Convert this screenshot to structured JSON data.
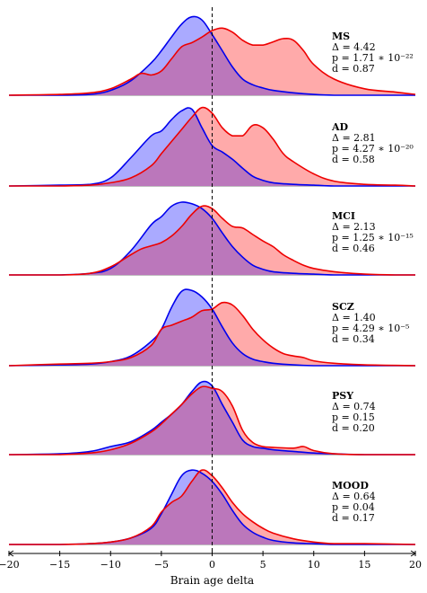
{
  "chart_data": {
    "type": "area",
    "xlabel": "Brain age delta",
    "xlim": [
      -20,
      20
    ],
    "xticks": [
      "−20",
      "−15",
      "−10",
      "−5",
      "0",
      "5",
      "10",
      "15",
      "20"
    ],
    "xtick_values": [
      -20,
      -15,
      -10,
      -5,
      0,
      5,
      10,
      15,
      20
    ],
    "reference_line_x": 0,
    "colors": {
      "control": "#0000ee",
      "control_fill": "#aaaaff",
      "patient": "#ee0000",
      "patient_fill": "#ffaaaa",
      "overlap": "#bb77bb"
    },
    "panels": [
      {
        "label": "MS",
        "stats": [
          "Δ = 4.42",
          "p = 1.71 ∗ 10⁻²²",
          "d = 0.87"
        ],
        "control": {
          "x": [
            -20,
            -15,
            -12,
            -10,
            -8,
            -6,
            -5,
            -4,
            -3,
            -2,
            -1,
            0,
            1,
            2,
            3,
            4,
            5,
            6,
            8,
            10,
            12,
            15,
            20
          ],
          "y": [
            0,
            0,
            0.01,
            0.06,
            0.18,
            0.4,
            0.55,
            0.72,
            0.88,
            0.97,
            0.93,
            0.75,
            0.55,
            0.35,
            0.2,
            0.13,
            0.09,
            0.06,
            0.03,
            0.01,
            0,
            0,
            0
          ]
        },
        "patient": {
          "x": [
            -20,
            -15,
            -12,
            -10,
            -8,
            -7,
            -6,
            -5,
            -4,
            -3,
            -2,
            -1,
            0,
            1,
            2,
            3,
            4,
            5,
            6,
            7,
            8,
            9,
            10,
            12,
            15,
            18,
            20
          ],
          "y": [
            0,
            0.01,
            0.03,
            0.08,
            0.2,
            0.27,
            0.25,
            0.3,
            0.45,
            0.6,
            0.65,
            0.72,
            0.8,
            0.83,
            0.78,
            0.68,
            0.62,
            0.62,
            0.66,
            0.7,
            0.68,
            0.55,
            0.38,
            0.2,
            0.08,
            0.04,
            0.01
          ]
        }
      },
      {
        "label": "AD",
        "stats": [
          "Δ = 2.81",
          "p = 4.27 ∗ 10⁻²⁰",
          "d = 0.58"
        ],
        "control": {
          "x": [
            -20,
            -15,
            -12,
            -10,
            -8,
            -6,
            -5,
            -4,
            -3,
            -2,
            -1,
            0,
            1,
            2,
            3,
            4,
            5,
            6,
            8,
            10,
            12,
            15,
            20
          ],
          "y": [
            0,
            0.01,
            0.02,
            0.1,
            0.35,
            0.62,
            0.68,
            0.82,
            0.93,
            0.95,
            0.72,
            0.5,
            0.42,
            0.33,
            0.22,
            0.12,
            0.07,
            0.04,
            0.02,
            0.01,
            0,
            0,
            0
          ]
        },
        "patient": {
          "x": [
            -20,
            -15,
            -12,
            -10,
            -8,
            -6,
            -5,
            -4,
            -3,
            -2,
            -1,
            0,
            1,
            2,
            3,
            4,
            5,
            6,
            7,
            8,
            10,
            12,
            15,
            18,
            20
          ],
          "y": [
            0,
            0,
            0.01,
            0.04,
            0.1,
            0.25,
            0.4,
            0.55,
            0.7,
            0.85,
            0.97,
            0.9,
            0.72,
            0.62,
            0.62,
            0.75,
            0.72,
            0.58,
            0.4,
            0.3,
            0.15,
            0.06,
            0.02,
            0.01,
            0
          ]
        }
      },
      {
        "label": "MCI",
        "stats": [
          "Δ = 2.13",
          "p = 1.25 ∗ 10⁻¹⁵",
          "d = 0.46"
        ],
        "control": {
          "x": [
            -20,
            -15,
            -12,
            -10,
            -8,
            -6,
            -5,
            -4,
            -3,
            -2,
            -1,
            0,
            1,
            2,
            3,
            4,
            5,
            6,
            8,
            10,
            12,
            15,
            20
          ],
          "y": [
            0,
            0,
            0.02,
            0.08,
            0.3,
            0.62,
            0.72,
            0.85,
            0.9,
            0.88,
            0.82,
            0.7,
            0.52,
            0.35,
            0.22,
            0.12,
            0.07,
            0.04,
            0.02,
            0.01,
            0,
            0,
            0
          ]
        },
        "patient": {
          "x": [
            -20,
            -15,
            -12,
            -10,
            -8,
            -7,
            -6,
            -5,
            -4,
            -3,
            -2,
            -1,
            0,
            1,
            2,
            3,
            4,
            5,
            6,
            7,
            8,
            9,
            10,
            12,
            15,
            18,
            20
          ],
          "y": [
            0,
            0,
            0.02,
            0.1,
            0.25,
            0.32,
            0.36,
            0.4,
            0.48,
            0.6,
            0.75,
            0.85,
            0.82,
            0.7,
            0.6,
            0.58,
            0.5,
            0.42,
            0.35,
            0.25,
            0.18,
            0.12,
            0.08,
            0.04,
            0.01,
            0,
            0
          ]
        }
      },
      {
        "label": "SCZ",
        "stats": [
          "Δ = 1.40",
          "p = 4.29 ∗ 10⁻⁵",
          "d = 0.34"
        ],
        "control": {
          "x": [
            -20,
            -15,
            -12,
            -10,
            -8,
            -6,
            -5,
            -4,
            -3,
            -2,
            -1,
            0,
            1,
            2,
            3,
            4,
            5,
            6,
            8,
            10,
            12,
            15,
            20
          ],
          "y": [
            0,
            0.01,
            0.02,
            0.05,
            0.12,
            0.3,
            0.45,
            0.72,
            0.92,
            0.93,
            0.85,
            0.7,
            0.48,
            0.28,
            0.15,
            0.08,
            0.05,
            0.03,
            0.01,
            0,
            0,
            0,
            0
          ]
        },
        "patient": {
          "x": [
            -20,
            -15,
            -12,
            -10,
            -8,
            -6,
            -5,
            -4,
            -3,
            -2,
            -1,
            0,
            1,
            2,
            3,
            4,
            5,
            6,
            7,
            8,
            9,
            10,
            12,
            15,
            20
          ],
          "y": [
            0,
            0.02,
            0.03,
            0.05,
            0.1,
            0.25,
            0.45,
            0.5,
            0.55,
            0.6,
            0.68,
            0.7,
            0.78,
            0.75,
            0.62,
            0.45,
            0.32,
            0.22,
            0.15,
            0.12,
            0.1,
            0.06,
            0.03,
            0.01,
            0
          ]
        }
      },
      {
        "label": "PSY",
        "stats": [
          "Δ = 0.74",
          "p = 0.15",
          "d = 0.20"
        ],
        "control": {
          "x": [
            -20,
            -15,
            -12,
            -10,
            -8,
            -6,
            -5,
            -4,
            -3,
            -2,
            -1,
            0,
            1,
            2,
            3,
            4,
            5,
            6,
            8,
            10,
            12,
            15,
            20
          ],
          "y": [
            0,
            0.01,
            0.04,
            0.1,
            0.16,
            0.3,
            0.4,
            0.5,
            0.62,
            0.78,
            0.9,
            0.85,
            0.62,
            0.4,
            0.18,
            0.1,
            0.08,
            0.06,
            0.04,
            0.02,
            0.01,
            0,
            0
          ]
        },
        "patient": {
          "x": [
            -20,
            -15,
            -12,
            -10,
            -8,
            -6,
            -5,
            -4,
            -3,
            -2,
            -1,
            0,
            1,
            2,
            3,
            4,
            5,
            6,
            8,
            9,
            10,
            12,
            15,
            20
          ],
          "y": [
            0,
            0,
            0.02,
            0.06,
            0.14,
            0.28,
            0.38,
            0.5,
            0.62,
            0.75,
            0.84,
            0.82,
            0.78,
            0.6,
            0.3,
            0.15,
            0.1,
            0.09,
            0.08,
            0.1,
            0.05,
            0.01,
            0,
            0
          ]
        }
      },
      {
        "label": "MOOD",
        "stats": [
          "Δ = 0.64",
          "p = 0.04",
          "d = 0.17"
        ],
        "control": {
          "x": [
            -20,
            -15,
            -12,
            -10,
            -8,
            -6,
            -5,
            -4,
            -3,
            -2,
            -1,
            0,
            1,
            2,
            3,
            4,
            5,
            6,
            8,
            10,
            12,
            15,
            20
          ],
          "y": [
            0,
            0,
            0.01,
            0.03,
            0.08,
            0.2,
            0.38,
            0.62,
            0.85,
            0.92,
            0.88,
            0.78,
            0.62,
            0.42,
            0.25,
            0.15,
            0.09,
            0.05,
            0.02,
            0.01,
            0,
            0,
            0
          ]
        },
        "patient": {
          "x": [
            -20,
            -15,
            -12,
            -10,
            -8,
            -6,
            -5,
            -4,
            -3,
            -2,
            -1,
            0,
            1,
            2,
            3,
            4,
            5,
            6,
            8,
            10,
            12,
            15,
            20
          ],
          "y": [
            0,
            0,
            0.01,
            0.03,
            0.08,
            0.22,
            0.4,
            0.52,
            0.6,
            0.78,
            0.92,
            0.85,
            0.7,
            0.52,
            0.38,
            0.28,
            0.2,
            0.14,
            0.07,
            0.03,
            0.01,
            0.01,
            0
          ]
        }
      }
    ]
  }
}
